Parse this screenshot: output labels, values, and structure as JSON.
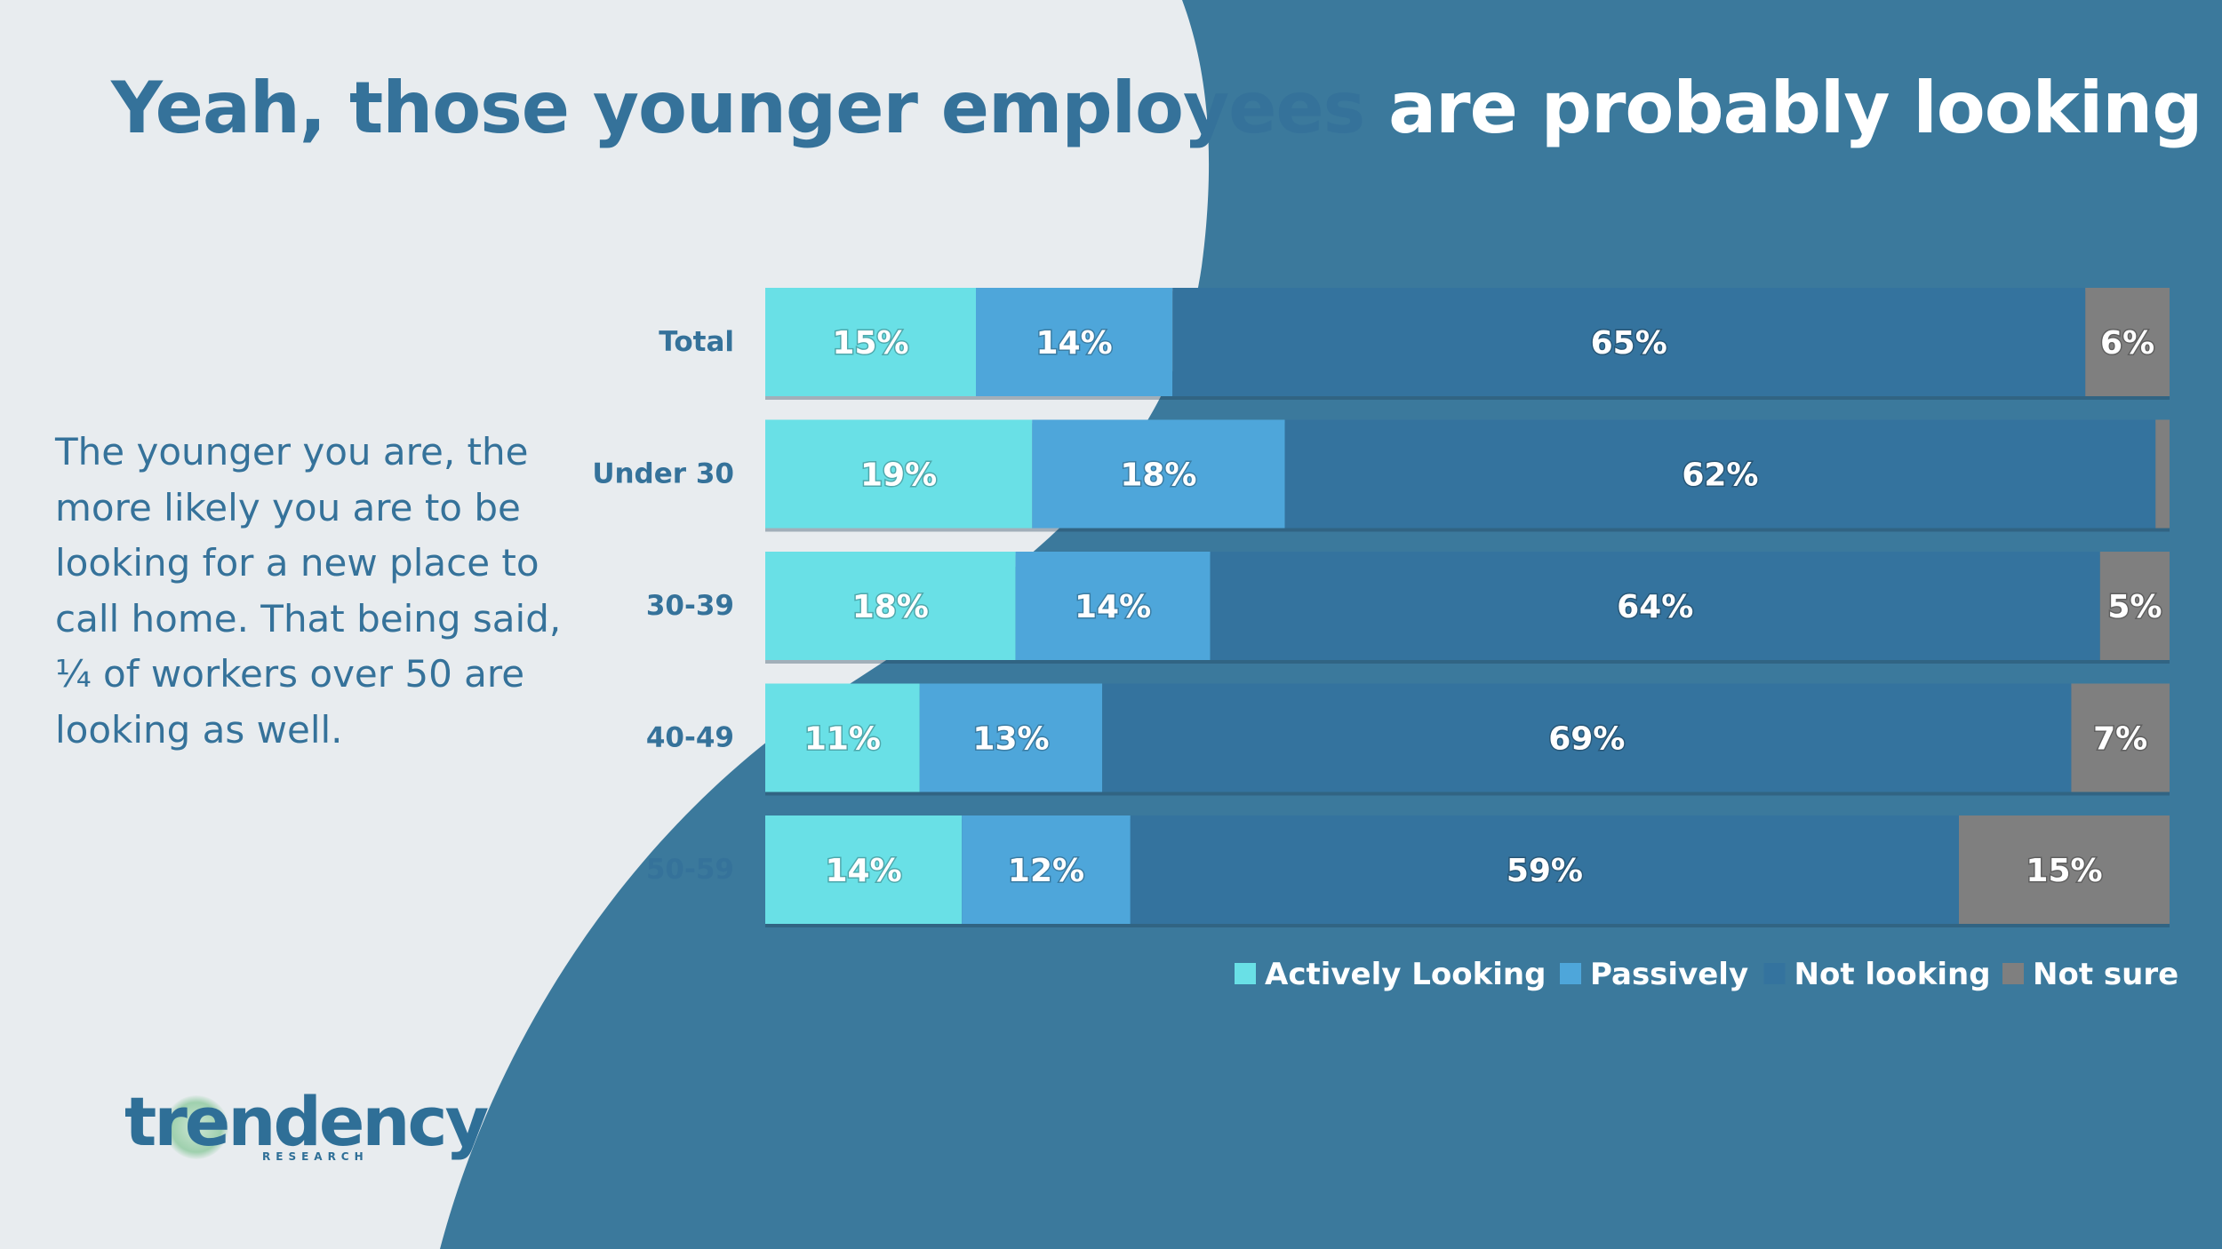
{
  "slide": {
    "title_part1": "Yeah, those younger employees ",
    "title_part2": "are probably looking",
    "body_text": "The younger you are, the more likely you are to be looking for a new place to call home. That being said, ¼ of workers over 50 are looking as well.",
    "logo_text": "trendency",
    "logo_subtext": "RESEARCH"
  },
  "colors": {
    "bg_light": "#E8ECEF",
    "bg_dark": "#3B799C",
    "title_dark": "#35729A",
    "actively": "#69E0E6",
    "passively": "#4EA6DA",
    "not_looking": "#34739E",
    "not_sure": "#7F7F7F"
  },
  "chart_data": {
    "type": "bar",
    "orientation": "horizontal",
    "stacked": true,
    "normalized": true,
    "categories": [
      "Total",
      "Under 30",
      "30-39",
      "40-49",
      "50-59"
    ],
    "series": [
      {
        "name": "Actively Looking",
        "values": [
          15,
          19,
          18,
          11,
          14
        ],
        "labels": [
          "15%",
          "19%",
          "18%",
          "11%",
          "14%"
        ]
      },
      {
        "name": "Passively",
        "values": [
          14,
          18,
          14,
          13,
          12
        ],
        "labels": [
          "14%",
          "18%",
          "14%",
          "13%",
          "12%"
        ]
      },
      {
        "name": "Not looking",
        "values": [
          65,
          62,
          64,
          69,
          59
        ],
        "labels": [
          "65%",
          "62%",
          "64%",
          "69%",
          "59%"
        ]
      },
      {
        "name": "Not sure",
        "values": [
          6,
          1,
          5,
          7,
          15
        ],
        "labels": [
          "6%",
          "",
          "5%",
          "7%",
          "15%"
        ]
      }
    ],
    "legend": [
      "Actively Looking",
      "Passively",
      "Not looking",
      "Not sure"
    ],
    "legend_position": "bottom-right",
    "grid": false
  }
}
